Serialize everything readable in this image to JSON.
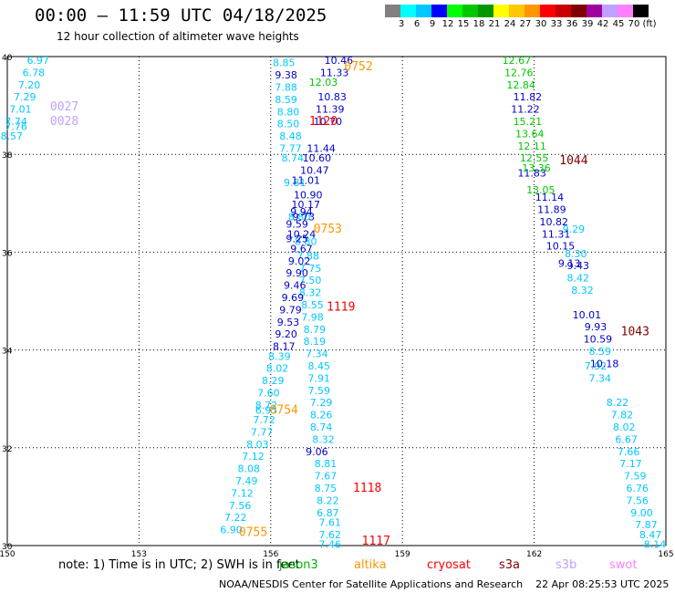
{
  "header": {
    "title": "00:00 — 11:59 UTC 04/18/2025",
    "subtitle": "12 hour collection of altimeter wave heights"
  },
  "scale": {
    "colors": [
      "#808080",
      "#00ffff",
      "#00c8ff",
      "#0000ff",
      "#00ff00",
      "#00c800",
      "#009600",
      "#ffff00",
      "#ffc800",
      "#ff9600",
      "#ff0000",
      "#c80000",
      "#800000",
      "#a000a0",
      "#c0a0ff",
      "#ff80ff",
      "#000000"
    ],
    "labels": [
      "3",
      "6",
      "9",
      "12",
      "15",
      "18",
      "21",
      "24",
      "27",
      "30",
      "33",
      "36",
      "39",
      "42",
      "45",
      "70",
      "(ft)"
    ]
  },
  "chart_data": {
    "type": "scatter",
    "title": "00:00 — 11:59 UTC 04/18/2025",
    "subtitle": "12 hour collection of altimeter wave heights",
    "xlim": [
      150,
      165
    ],
    "ylim": [
      30,
      40
    ],
    "xticks": [
      "150",
      "153",
      "156",
      "159",
      "162",
      "165"
    ],
    "yticks": [
      "30",
      "32",
      "34",
      "36",
      "38",
      "40"
    ],
    "grid": true,
    "units": "ft",
    "pass_labels": [
      {
        "text": "0752",
        "color": "#ff9600",
        "lon": 158.0,
        "lat": 39.72
      },
      {
        "text": "0027",
        "color": "#c0a0ff",
        "lon": 151.3,
        "lat": 38.9
      },
      {
        "text": "0028",
        "color": "#c0a0ff",
        "lon": 151.3,
        "lat": 38.6
      },
      {
        "text": "1120",
        "color": "#ff0000",
        "lon": 157.2,
        "lat": 38.6
      },
      {
        "text": "1044",
        "color": "#800000",
        "lon": 162.9,
        "lat": 37.8
      },
      {
        "text": "0753",
        "color": "#ff9600",
        "lon": 157.3,
        "lat": 36.4
      },
      {
        "text": "1119",
        "color": "#ff0000",
        "lon": 157.6,
        "lat": 34.8
      },
      {
        "text": "1043",
        "color": "#800000",
        "lon": 164.3,
        "lat": 34.3
      },
      {
        "text": "0754",
        "color": "#ff9600",
        "lon": 156.3,
        "lat": 32.7
      },
      {
        "text": "1118",
        "color": "#ff0000",
        "lon": 158.2,
        "lat": 31.1
      },
      {
        "text": "0755",
        "color": "#ff9600",
        "lon": 155.6,
        "lat": 30.2
      },
      {
        "text": "1117",
        "color": "#ff0000",
        "lon": 158.4,
        "lat": 30.02
      }
    ],
    "series": [
      {
        "name": "jason3",
        "color": "#00c8ff",
        "points": [
          {
            "lon": 150.7,
            "lat": 39.85,
            "v": "6.97"
          },
          {
            "lon": 150.6,
            "lat": 39.6,
            "v": "6.78"
          },
          {
            "lon": 150.5,
            "lat": 39.35,
            "v": "7.20"
          },
          {
            "lon": 150.4,
            "lat": 39.1,
            "v": "7.29"
          },
          {
            "lon": 150.3,
            "lat": 38.85,
            "v": "7.01"
          },
          {
            "lon": 150.2,
            "lat": 38.6,
            "v": "7.74"
          },
          {
            "lon": 150.2,
            "lat": 38.5,
            "v": "7.76"
          },
          {
            "lon": 150.1,
            "lat": 38.3,
            "v": "8.57"
          },
          {
            "lon": 156.3,
            "lat": 39.8,
            "v": "8.85"
          },
          {
            "lon": 156.35,
            "lat": 39.3,
            "v": "7.88"
          },
          {
            "lon": 156.35,
            "lat": 39.05,
            "v": "8.59"
          },
          {
            "lon": 156.4,
            "lat": 38.8,
            "v": "8.80"
          },
          {
            "lon": 156.4,
            "lat": 38.55,
            "v": "8.50"
          },
          {
            "lon": 156.45,
            "lat": 38.3,
            "v": "8.48"
          },
          {
            "lon": 156.45,
            "lat": 38.05,
            "v": "7.77"
          },
          {
            "lon": 156.5,
            "lat": 37.85,
            "v": "8.74"
          },
          {
            "lon": 156.55,
            "lat": 37.35,
            "v": "9.81"
          },
          {
            "lon": 156.65,
            "lat": 36.65,
            "v": "8.80"
          },
          {
            "lon": 156.8,
            "lat": 36.15,
            "v": "8.80"
          },
          {
            "lon": 156.85,
            "lat": 35.85,
            "v": "7.88"
          },
          {
            "lon": 156.9,
            "lat": 35.6,
            "v": "7.75"
          },
          {
            "lon": 156.9,
            "lat": 35.35,
            "v": "7.50"
          },
          {
            "lon": 156.9,
            "lat": 35.1,
            "v": "8.32"
          },
          {
            "lon": 156.95,
            "lat": 34.85,
            "v": "8.55"
          },
          {
            "lon": 156.95,
            "lat": 34.6,
            "v": "7.98"
          },
          {
            "lon": 157.0,
            "lat": 34.35,
            "v": "8.79"
          },
          {
            "lon": 157.0,
            "lat": 34.1,
            "v": "8.19"
          },
          {
            "lon": 157.05,
            "lat": 33.85,
            "v": "7.34"
          },
          {
            "lon": 157.1,
            "lat": 33.6,
            "v": "8.45"
          },
          {
            "lon": 157.1,
            "lat": 33.35,
            "v": "7.91"
          },
          {
            "lon": 157.1,
            "lat": 33.1,
            "v": "7.59"
          },
          {
            "lon": 157.15,
            "lat": 32.85,
            "v": "7.29"
          },
          {
            "lon": 157.15,
            "lat": 32.6,
            "v": "8.26"
          },
          {
            "lon": 157.15,
            "lat": 32.35,
            "v": "8.74"
          },
          {
            "lon": 157.2,
            "lat": 32.1,
            "v": "8.32"
          },
          {
            "lon": 157.25,
            "lat": 31.6,
            "v": "8.81"
          },
          {
            "lon": 157.25,
            "lat": 31.35,
            "v": "7.67"
          },
          {
            "lon": 157.25,
            "lat": 31.1,
            "v": "8.75"
          },
          {
            "lon": 157.3,
            "lat": 30.85,
            "v": "8.22"
          },
          {
            "lon": 157.3,
            "lat": 30.6,
            "v": "6.87"
          },
          {
            "lon": 157.35,
            "lat": 30.4,
            "v": "7.61"
          },
          {
            "lon": 157.35,
            "lat": 30.15,
            "v": "7.62"
          },
          {
            "lon": 157.35,
            "lat": 29.95,
            "v": "7.46"
          },
          {
            "lon": 156.2,
            "lat": 33.8,
            "v": "8.39"
          },
          {
            "lon": 156.15,
            "lat": 33.55,
            "v": "8.02"
          },
          {
            "lon": 156.05,
            "lat": 33.3,
            "v": "8.29"
          },
          {
            "lon": 155.95,
            "lat": 33.05,
            "v": "7.60"
          },
          {
            "lon": 155.9,
            "lat": 32.8,
            "v": "8.72"
          },
          {
            "lon": 155.9,
            "lat": 32.7,
            "v": "6.95"
          },
          {
            "lon": 155.85,
            "lat": 32.5,
            "v": "7.72"
          },
          {
            "lon": 155.8,
            "lat": 32.25,
            "v": "7.77"
          },
          {
            "lon": 155.7,
            "lat": 32.0,
            "v": "8.03"
          },
          {
            "lon": 155.6,
            "lat": 31.75,
            "v": "7.12"
          },
          {
            "lon": 155.5,
            "lat": 31.5,
            "v": "8.08"
          },
          {
            "lon": 155.45,
            "lat": 31.25,
            "v": "7.49"
          },
          {
            "lon": 155.35,
            "lat": 31.0,
            "v": "7.12"
          },
          {
            "lon": 155.3,
            "lat": 30.75,
            "v": "7.56"
          },
          {
            "lon": 155.2,
            "lat": 30.5,
            "v": "7.22"
          },
          {
            "lon": 155.1,
            "lat": 30.25,
            "v": "6.90"
          },
          {
            "lon": 162.9,
            "lat": 36.4,
            "v": "9.29"
          },
          {
            "lon": 162.95,
            "lat": 35.9,
            "v": "8.30"
          },
          {
            "lon": 163.0,
            "lat": 35.4,
            "v": "8.42"
          },
          {
            "lon": 163.1,
            "lat": 35.15,
            "v": "8.32"
          },
          {
            "lon": 163.5,
            "lat": 33.9,
            "v": "8.59"
          },
          {
            "lon": 163.9,
            "lat": 32.85,
            "v": "8.22"
          },
          {
            "lon": 164.0,
            "lat": 32.6,
            "v": "7.82"
          },
          {
            "lon": 164.05,
            "lat": 32.35,
            "v": "8.02"
          },
          {
            "lon": 164.1,
            "lat": 32.1,
            "v": "6.67"
          },
          {
            "lon": 164.15,
            "lat": 31.85,
            "v": "7.66"
          },
          {
            "lon": 164.2,
            "lat": 31.6,
            "v": "7.17"
          },
          {
            "lon": 164.3,
            "lat": 31.35,
            "v": "7.59"
          },
          {
            "lon": 164.35,
            "lat": 31.1,
            "v": "6.76"
          },
          {
            "lon": 164.35,
            "lat": 30.85,
            "v": "7.56"
          },
          {
            "lon": 164.45,
            "lat": 30.6,
            "v": "9.00"
          },
          {
            "lon": 164.55,
            "lat": 30.35,
            "v": "7.87"
          },
          {
            "lon": 164.65,
            "lat": 30.15,
            "v": "8.47"
          },
          {
            "lon": 164.75,
            "lat": 29.95,
            "v": "8.14"
          },
          {
            "lon": 163.4,
            "lat": 33.6,
            "v": "7.92"
          },
          {
            "lon": 163.5,
            "lat": 33.35,
            "v": "7.34"
          }
        ]
      },
      {
        "name": "cryosat",
        "color": "#0000c8",
        "points": [
          {
            "lon": 157.55,
            "lat": 39.85,
            "v": "10.46"
          },
          {
            "lon": 157.45,
            "lat": 39.6,
            "v": "11.33"
          },
          {
            "lon": 156.35,
            "lat": 39.55,
            "v": "9.38"
          },
          {
            "lon": 157.4,
            "lat": 39.1,
            "v": "10.83"
          },
          {
            "lon": 157.35,
            "lat": 38.85,
            "v": "11.39"
          },
          {
            "lon": 157.3,
            "lat": 38.6,
            "v": "10.70"
          },
          {
            "lon": 157.15,
            "lat": 38.05,
            "v": "11.44"
          },
          {
            "lon": 157.05,
            "lat": 37.85,
            "v": "10.60"
          },
          {
            "lon": 157.0,
            "lat": 37.6,
            "v": "10.47"
          },
          {
            "lon": 156.8,
            "lat": 37.4,
            "v": "11.01"
          },
          {
            "lon": 156.85,
            "lat": 37.1,
            "v": "10.90"
          },
          {
            "lon": 156.8,
            "lat": 36.9,
            "v": "10.17"
          },
          {
            "lon": 156.75,
            "lat": 36.65,
            "v": "9.73"
          },
          {
            "lon": 156.7,
            "lat": 36.3,
            "v": "10.24"
          },
          {
            "lon": 156.7,
            "lat": 36.0,
            "v": "9.67"
          },
          {
            "lon": 156.65,
            "lat": 35.75,
            "v": "9.02"
          },
          {
            "lon": 156.6,
            "lat": 35.5,
            "v": "9.90"
          },
          {
            "lon": 156.55,
            "lat": 35.25,
            "v": "9.46"
          },
          {
            "lon": 156.5,
            "lat": 35.0,
            "v": "9.69"
          },
          {
            "lon": 156.45,
            "lat": 34.75,
            "v": "9.79"
          },
          {
            "lon": 156.4,
            "lat": 34.5,
            "v": "9.53"
          },
          {
            "lon": 156.35,
            "lat": 34.25,
            "v": "9.20"
          },
          {
            "lon": 156.3,
            "lat": 34.0,
            "v": "8.17"
          },
          {
            "lon": 156.7,
            "lat": 36.75,
            "v": "9.94"
          },
          {
            "lon": 156.6,
            "lat": 36.5,
            "v": "9.59"
          },
          {
            "lon": 156.6,
            "lat": 36.2,
            "v": "9.25"
          },
          {
            "lon": 161.85,
            "lat": 39.1,
            "v": "11.82"
          },
          {
            "lon": 161.8,
            "lat": 38.85,
            "v": "11.22"
          },
          {
            "lon": 161.95,
            "lat": 37.55,
            "v": "11.83"
          },
          {
            "lon": 162.35,
            "lat": 37.05,
            "v": "11.14"
          },
          {
            "lon": 162.4,
            "lat": 36.8,
            "v": "11.89"
          },
          {
            "lon": 162.45,
            "lat": 36.55,
            "v": "10.82"
          },
          {
            "lon": 162.5,
            "lat": 36.3,
            "v": "11.31"
          },
          {
            "lon": 162.6,
            "lat": 36.05,
            "v": "10.15"
          },
          {
            "lon": 162.8,
            "lat": 35.7,
            "v": "9.13"
          },
          {
            "lon": 163.0,
            "lat": 35.65,
            "v": "9.43"
          },
          {
            "lon": 163.2,
            "lat": 34.65,
            "v": "10.01"
          },
          {
            "lon": 163.4,
            "lat": 34.4,
            "v": "9.93"
          },
          {
            "lon": 163.45,
            "lat": 34.15,
            "v": "10.59"
          },
          {
            "lon": 163.6,
            "lat": 33.65,
            "v": "10.18"
          },
          {
            "lon": 157.05,
            "lat": 31.85,
            "v": "9.06"
          }
        ]
      },
      {
        "name": "saral",
        "color": "#00c800",
        "points": [
          {
            "lon": 161.6,
            "lat": 39.85,
            "v": "12.67"
          },
          {
            "lon": 161.65,
            "lat": 39.6,
            "v": "12.76"
          },
          {
            "lon": 161.7,
            "lat": 39.35,
            "v": "12.84"
          },
          {
            "lon": 157.2,
            "lat": 39.4,
            "v": "12.03"
          },
          {
            "lon": 161.85,
            "lat": 38.6,
            "v": "15.21"
          },
          {
            "lon": 161.9,
            "lat": 38.35,
            "v": "13.64"
          },
          {
            "lon": 161.95,
            "lat": 38.1,
            "v": "12.11"
          },
          {
            "lon": 162.0,
            "lat": 37.85,
            "v": "12.55"
          },
          {
            "lon": 162.05,
            "lat": 37.65,
            "v": "13.36"
          },
          {
            "lon": 162.15,
            "lat": 37.2,
            "v": "13.05"
          }
        ]
      }
    ]
  },
  "axes": {
    "x_ticks": [
      "150",
      "153",
      "156",
      "159",
      "162",
      "165"
    ],
    "y_ticks": [
      "30",
      "32",
      "34",
      "36",
      "38",
      "40"
    ]
  },
  "note": "note: 1) Time is in UTC; 2) SWH is in feet",
  "satellites": [
    {
      "label": "jason3",
      "color": "#00b000"
    },
    {
      "label": "altika",
      "color": "#ff9600"
    },
    {
      "label": "cryosat",
      "color": "#ff0000"
    },
    {
      "label": "s3a",
      "color": "#800000"
    },
    {
      "label": "s3b",
      "color": "#c0a0ff"
    },
    {
      "label": "swot",
      "color": "#ff80ff"
    }
  ],
  "footer": "NOAA/NESDIS Center for Satellite Applications and Research    22 Apr 08:25:53 UTC 2025"
}
